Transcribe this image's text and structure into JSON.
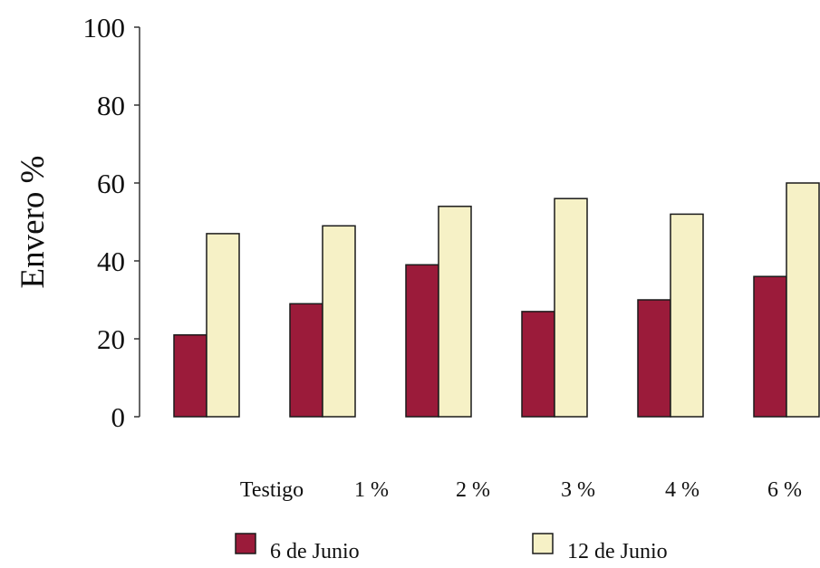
{
  "chart_data": {
    "type": "bar",
    "title": "",
    "xlabel": "",
    "ylabel": "Envero %",
    "ylim": [
      0,
      100
    ],
    "yticks": [
      "0",
      "20",
      "40",
      "60",
      "80",
      "100"
    ],
    "grid": false,
    "legend_position": "bottom",
    "categories": [
      "Testigo",
      "1 %",
      "2 %",
      "3 %",
      "4 %",
      "6 %"
    ],
    "series": [
      {
        "name": "6 de Junio",
        "color": "#9b1b3a",
        "values": [
          21,
          29,
          39,
          27,
          30,
          36
        ]
      },
      {
        "name": "12 de Junio",
        "color": "#f6f1c6",
        "values": [
          47,
          49,
          54,
          56,
          52,
          60
        ]
      }
    ]
  }
}
